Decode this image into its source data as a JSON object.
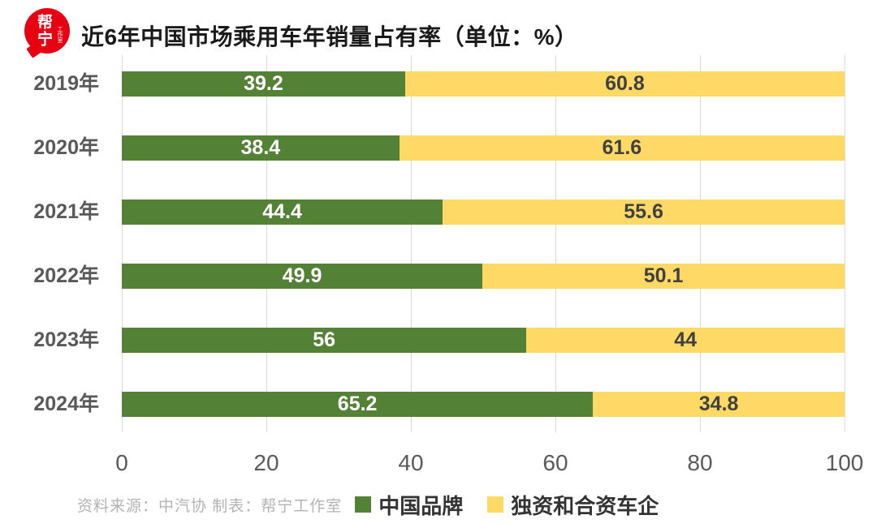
{
  "header": {
    "logo": {
      "chars": "帮宁",
      "sub": "工作室"
    },
    "title": "近6年中国市场乘用车年销量占有率（单位：%）"
  },
  "chart_data": {
    "type": "bar",
    "orientation": "horizontal",
    "stacked": true,
    "title": "近6年中国市场乘用车年销量占有率",
    "unit": "%",
    "categories": [
      "2019年",
      "2020年",
      "2021年",
      "2022年",
      "2023年",
      "2024年"
    ],
    "series": [
      {
        "key": "china-brands",
        "name": "中国品牌",
        "color": "#538135",
        "label_color": "#ffffff",
        "values": [
          39.2,
          38.4,
          44.4,
          49.9,
          56,
          65.2
        ]
      },
      {
        "key": "foreign-joint-venture",
        "name": "独资和合资车企",
        "color": "#FFD966",
        "label_color": "#404040",
        "values": [
          60.8,
          61.6,
          55.6,
          50.1,
          44,
          34.8
        ]
      }
    ],
    "xlim": [
      0,
      100
    ],
    "x_ticks": [
      0,
      20,
      40,
      60,
      80,
      100
    ],
    "grid": true,
    "legend_position": "bottom"
  },
  "footer": {
    "source": "资料来源：中汽协  制表：帮宁工作室"
  },
  "colors": {
    "background": "#ffffff",
    "grid": "#d9d9d9",
    "axis_label": "#595959",
    "category_label": "#595959",
    "title": "#1a1a1a",
    "source": "#b3b3b3",
    "legend_text": "#333333",
    "logo_red": "#e60012"
  }
}
